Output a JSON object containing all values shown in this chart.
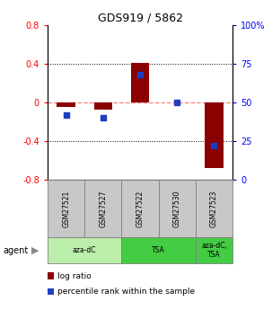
{
  "title": "GDS919 / 5862",
  "samples": [
    "GSM27521",
    "GSM27527",
    "GSM27522",
    "GSM27530",
    "GSM27523"
  ],
  "log_ratios": [
    -0.05,
    -0.08,
    0.41,
    0.0,
    -0.68
  ],
  "percentile_ranks": [
    42,
    40,
    68,
    50,
    22
  ],
  "ylim_left": [
    -0.8,
    0.8
  ],
  "ylim_right": [
    0,
    100
  ],
  "yticks_left": [
    -0.8,
    -0.4,
    0.0,
    0.4,
    0.8
  ],
  "yticks_right": [
    0,
    25,
    50,
    75,
    100
  ],
  "yticklabels_right": [
    "0",
    "25",
    "50",
    "75",
    "100%"
  ],
  "bar_color": "#8B0000",
  "dot_color": "#1E3EBF",
  "zero_line_color": "#FF8080",
  "agent_data": [
    {
      "label": "aza-dC",
      "start": 0,
      "end": 2,
      "color": "#BBEEAA"
    },
    {
      "label": "TSA",
      "start": 2,
      "end": 4,
      "color": "#44CC44"
    },
    {
      "label": "aza-dC,\nTSA",
      "start": 4,
      "end": 5,
      "color": "#44CC44"
    }
  ],
  "sample_box_color": "#C8C8C8",
  "legend_log_ratio": "log ratio",
  "legend_percentile": "percentile rank within the sample"
}
